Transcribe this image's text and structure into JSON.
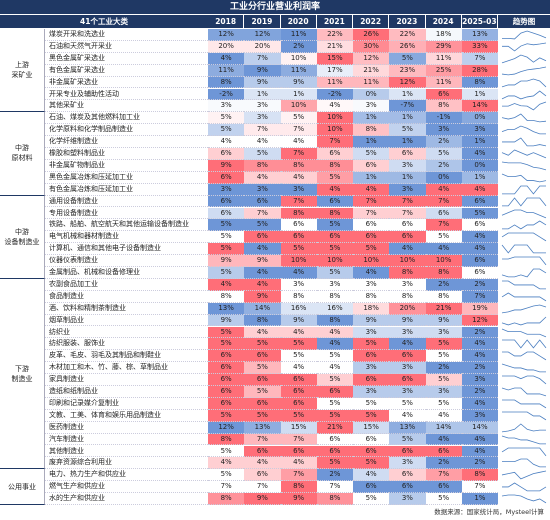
{
  "title": "工业分行业营业利润率",
  "header": {
    "name": "41个工业大类",
    "years": [
      "2018",
      "2019",
      "2020",
      "2021",
      "2022",
      "2023",
      "2024",
      "2025-03"
    ],
    "trend": "趋势图"
  },
  "groups": [
    {
      "label": [
        "上游",
        "采矿业"
      ],
      "rows": [
        {
          "name": "煤炭开采和洗选业",
          "values": [
            "12%",
            "12%",
            "11%",
            "22%",
            "26%",
            "22%",
            "18%",
            "13%"
          ]
        },
        {
          "name": "石油和天然气开采业",
          "values": [
            "20%",
            "20%",
            "2%",
            "21%",
            "30%",
            "26%",
            "29%",
            "33%"
          ]
        },
        {
          "name": "黑色金属矿采选业",
          "values": [
            "4%",
            "7%",
            "10%",
            "15%",
            "12%",
            "5%",
            "11%",
            "7%"
          ]
        },
        {
          "name": "有色金属矿采选业",
          "values": [
            "11%",
            "9%",
            "11%",
            "17%",
            "21%",
            "23%",
            "25%",
            "28%"
          ]
        },
        {
          "name": "非金属矿采选业",
          "values": [
            "8%",
            "9%",
            "9%",
            "11%",
            "11%",
            "12%",
            "11%",
            "8%"
          ]
        },
        {
          "name": "开采专业及辅助性活动",
          "values": [
            "-2%",
            "1%",
            "1%",
            "-2%",
            "0%",
            "1%",
            "6%",
            "1%"
          ]
        },
        {
          "name": "其他采矿业",
          "values": [
            "3%",
            "3%",
            "10%",
            "4%",
            "3%",
            "-7%",
            "8%",
            "14%"
          ]
        }
      ]
    },
    {
      "label": [
        "中游",
        "原材料"
      ],
      "rows": [
        {
          "name": "石油、煤炭及其他燃料加工业",
          "values": [
            "5%",
            "3%",
            "5%",
            "10%",
            "1%",
            "1%",
            "-1%",
            "0%"
          ]
        },
        {
          "name": "化学原料和化学制品制造业",
          "values": [
            "5%",
            "7%",
            "7%",
            "10%",
            "8%",
            "5%",
            "3%",
            "3%"
          ]
        },
        {
          "name": "化学纤维制造业",
          "values": [
            "4%",
            "4%",
            "4%",
            "7%",
            "1%",
            "1%",
            "2%",
            "1%"
          ]
        },
        {
          "name": "橡胶和塑料制品业",
          "values": [
            "6%",
            "5%",
            "7%",
            "6%",
            "5%",
            "6%",
            "5%",
            "4%"
          ]
        },
        {
          "name": "非金属矿物制品业",
          "values": [
            "9%",
            "8%",
            "8%",
            "8%",
            "6%",
            "3%",
            "2%",
            "0%"
          ]
        },
        {
          "name": "黑色金属冶炼和压延加工业",
          "values": [
            "6%",
            "4%",
            "4%",
            "5%",
            "1%",
            "1%",
            "0%",
            "1%"
          ]
        },
        {
          "name": "有色金属冶炼和压延加工业",
          "values": [
            "3%",
            "3%",
            "3%",
            "4%",
            "4%",
            "3%",
            "4%",
            "4%"
          ]
        }
      ]
    },
    {
      "label": [
        "中游",
        "设备制造业"
      ],
      "rows": [
        {
          "name": "通用设备制造业",
          "values": [
            "6%",
            "6%",
            "7%",
            "6%",
            "7%",
            "7%",
            "7%",
            "6%"
          ]
        },
        {
          "name": "专用设备制造业",
          "values": [
            "6%",
            "7%",
            "8%",
            "8%",
            "7%",
            "7%",
            "6%",
            "5%"
          ]
        },
        {
          "name": "铁路、船舶、航空航天和其他运输设备制造业",
          "values": [
            "5%",
            "5%",
            "6%",
            "5%",
            "6%",
            "6%",
            "7%",
            "6%"
          ]
        },
        {
          "name": "电气机械和器材制造业",
          "values": [
            "5%",
            "6%",
            "6%",
            "6%",
            "6%",
            "6%",
            "5%",
            "4%"
          ]
        },
        {
          "name": "计算机、通信和其他电子设备制造业",
          "values": [
            "5%",
            "4%",
            "5%",
            "5%",
            "5%",
            "4%",
            "4%",
            "4%"
          ]
        },
        {
          "name": "仪器仪表制造业",
          "values": [
            "9%",
            "9%",
            "10%",
            "10%",
            "10%",
            "10%",
            "10%",
            "6%"
          ]
        },
        {
          "name": "金属制品、机械和设备修理业",
          "values": [
            "5%",
            "4%",
            "4%",
            "5%",
            "4%",
            "8%",
            "8%",
            "6%"
          ]
        }
      ]
    },
    {
      "label": [
        "下游",
        "制造业"
      ],
      "rows": [
        {
          "name": "农副食品加工业",
          "values": [
            "4%",
            "4%",
            "3%",
            "3%",
            "3%",
            "3%",
            "2%",
            "2%"
          ]
        },
        {
          "name": "食品制造业",
          "values": [
            "8%",
            "9%",
            "8%",
            "8%",
            "8%",
            "8%",
            "8%",
            "7%"
          ]
        },
        {
          "name": "酒、饮料和精制茶制造业",
          "values": [
            "13%",
            "14%",
            "16%",
            "16%",
            "18%",
            "20%",
            "21%",
            "19%"
          ]
        },
        {
          "name": "烟草制品业",
          "values": [
            "9%",
            "8%",
            "9%",
            "8%",
            "9%",
            "9%",
            "9%",
            "12%"
          ]
        },
        {
          "name": "纺织业",
          "values": [
            "5%",
            "4%",
            "4%",
            "4%",
            "3%",
            "3%",
            "3%",
            "2%"
          ]
        },
        {
          "name": "纺织服装、服饰业",
          "values": [
            "5%",
            "5%",
            "5%",
            "4%",
            "5%",
            "4%",
            "5%",
            "4%"
          ]
        },
        {
          "name": "皮革、毛皮、羽毛及其制品和制鞋业",
          "values": [
            "6%",
            "6%",
            "5%",
            "5%",
            "6%",
            "6%",
            "5%",
            "4%"
          ]
        },
        {
          "name": "木材加工和木、竹、藤、棕、草制品业",
          "values": [
            "6%",
            "5%",
            "4%",
            "4%",
            "3%",
            "3%",
            "2%",
            "2%"
          ]
        },
        {
          "name": "家具制造业",
          "values": [
            "6%",
            "6%",
            "6%",
            "5%",
            "6%",
            "6%",
            "5%",
            "3%"
          ]
        },
        {
          "name": "造纸和纸制品业",
          "values": [
            "6%",
            "5%",
            "6%",
            "6%",
            "3%",
            "3%",
            "3%",
            "2%"
          ]
        },
        {
          "name": "印刷和记录媒介复制业",
          "values": [
            "6%",
            "6%",
            "6%",
            "5%",
            "5%",
            "5%",
            "5%",
            "4%"
          ]
        },
        {
          "name": "文教、工美、体育和娱乐用品制造业",
          "values": [
            "5%",
            "5%",
            "5%",
            "5%",
            "5%",
            "4%",
            "4%",
            "3%"
          ]
        },
        {
          "name": "医药制造业",
          "values": [
            "12%",
            "13%",
            "15%",
            "21%",
            "15%",
            "13%",
            "14%",
            "14%"
          ]
        },
        {
          "name": "汽车制造业",
          "values": [
            "8%",
            "7%",
            "7%",
            "6%",
            "6%",
            "5%",
            "4%",
            "4%"
          ]
        },
        {
          "name": "其他制造业",
          "values": [
            "5%",
            "6%",
            "6%",
            "6%",
            "6%",
            "6%",
            "6%",
            "4%"
          ]
        },
        {
          "name": "废弃资源综合利用业",
          "values": [
            "4%",
            "4%",
            "4%",
            "5%",
            "5%",
            "3%",
            "2%",
            "2%"
          ]
        }
      ]
    },
    {
      "label": [
        "公用事业"
      ],
      "rows": [
        {
          "name": "电力、热力生产和供应业",
          "values": [
            "5%",
            "6%",
            "7%",
            "2%",
            "4%",
            "6%",
            "7%",
            "8%"
          ]
        },
        {
          "name": "燃气生产和供应业",
          "values": [
            "7%",
            "7%",
            "8%",
            "7%",
            "6%",
            "6%",
            "6%",
            "7%"
          ]
        },
        {
          "name": "水的生产和供应业",
          "values": [
            "8%",
            "9%",
            "9%",
            "8%",
            "5%",
            "3%",
            "5%",
            "1%"
          ]
        }
      ]
    }
  ],
  "footer": "数据来源：国家统计局，Mysteel计算"
}
